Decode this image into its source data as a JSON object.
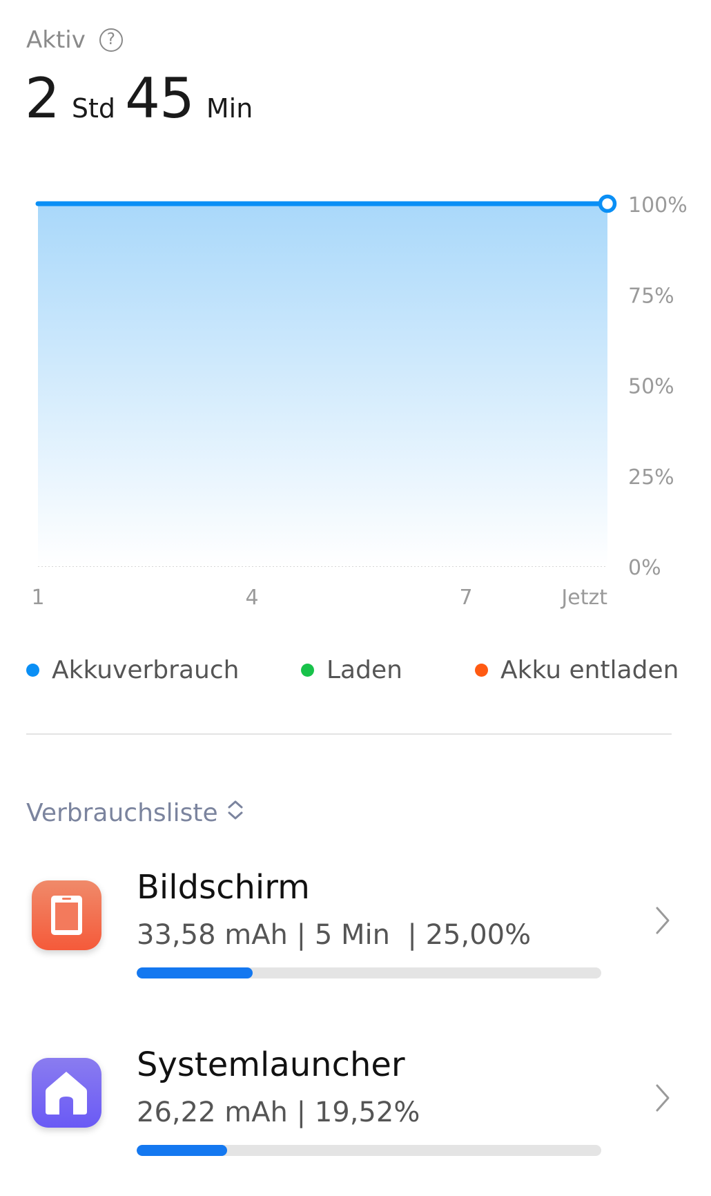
{
  "header": {
    "label": "Aktiv",
    "help_icon": "help-circle-icon",
    "hours_value": "2",
    "hours_unit": "Std",
    "minutes_value": "45",
    "minutes_unit": "Min"
  },
  "chart_data": {
    "type": "area",
    "x_tick_labels": [
      "1",
      "4",
      "7",
      "Jetzt"
    ],
    "y_tick_labels": [
      "100%",
      "75%",
      "50%",
      "25%",
      "0%"
    ],
    "ylim": [
      0,
      100
    ],
    "grid": true,
    "series": [
      {
        "name": "Akkuverbrauch",
        "color": "#0a8ff5",
        "x": [
          1,
          9.0
        ],
        "values": [
          100,
          100
        ]
      }
    ],
    "x_range": [
      1,
      9.0
    ]
  },
  "legend": [
    {
      "label": "Akkuverbrauch",
      "color": "#0a8ff5"
    },
    {
      "label": "Laden",
      "color": "#18c24a"
    },
    {
      "label": "Akku entladen",
      "color": "#ff5a12"
    }
  ],
  "list": {
    "title": "Verbrauchsliste",
    "sort_icon": "sort-updown-icon",
    "items": [
      {
        "name": "Bildschirm",
        "stats": "33,58 mAh | 5 Min  | 25,00%",
        "share": 0.25,
        "icon": "screen-icon",
        "icon_colors": [
          "#f08a6a",
          "#f55a3a"
        ]
      },
      {
        "name": "Systemlauncher",
        "stats": "26,22 mAh | 19,52%",
        "share": 0.1952,
        "icon": "home-icon",
        "icon_colors": [
          "#8a7cf0",
          "#6a5af5"
        ]
      }
    ]
  }
}
